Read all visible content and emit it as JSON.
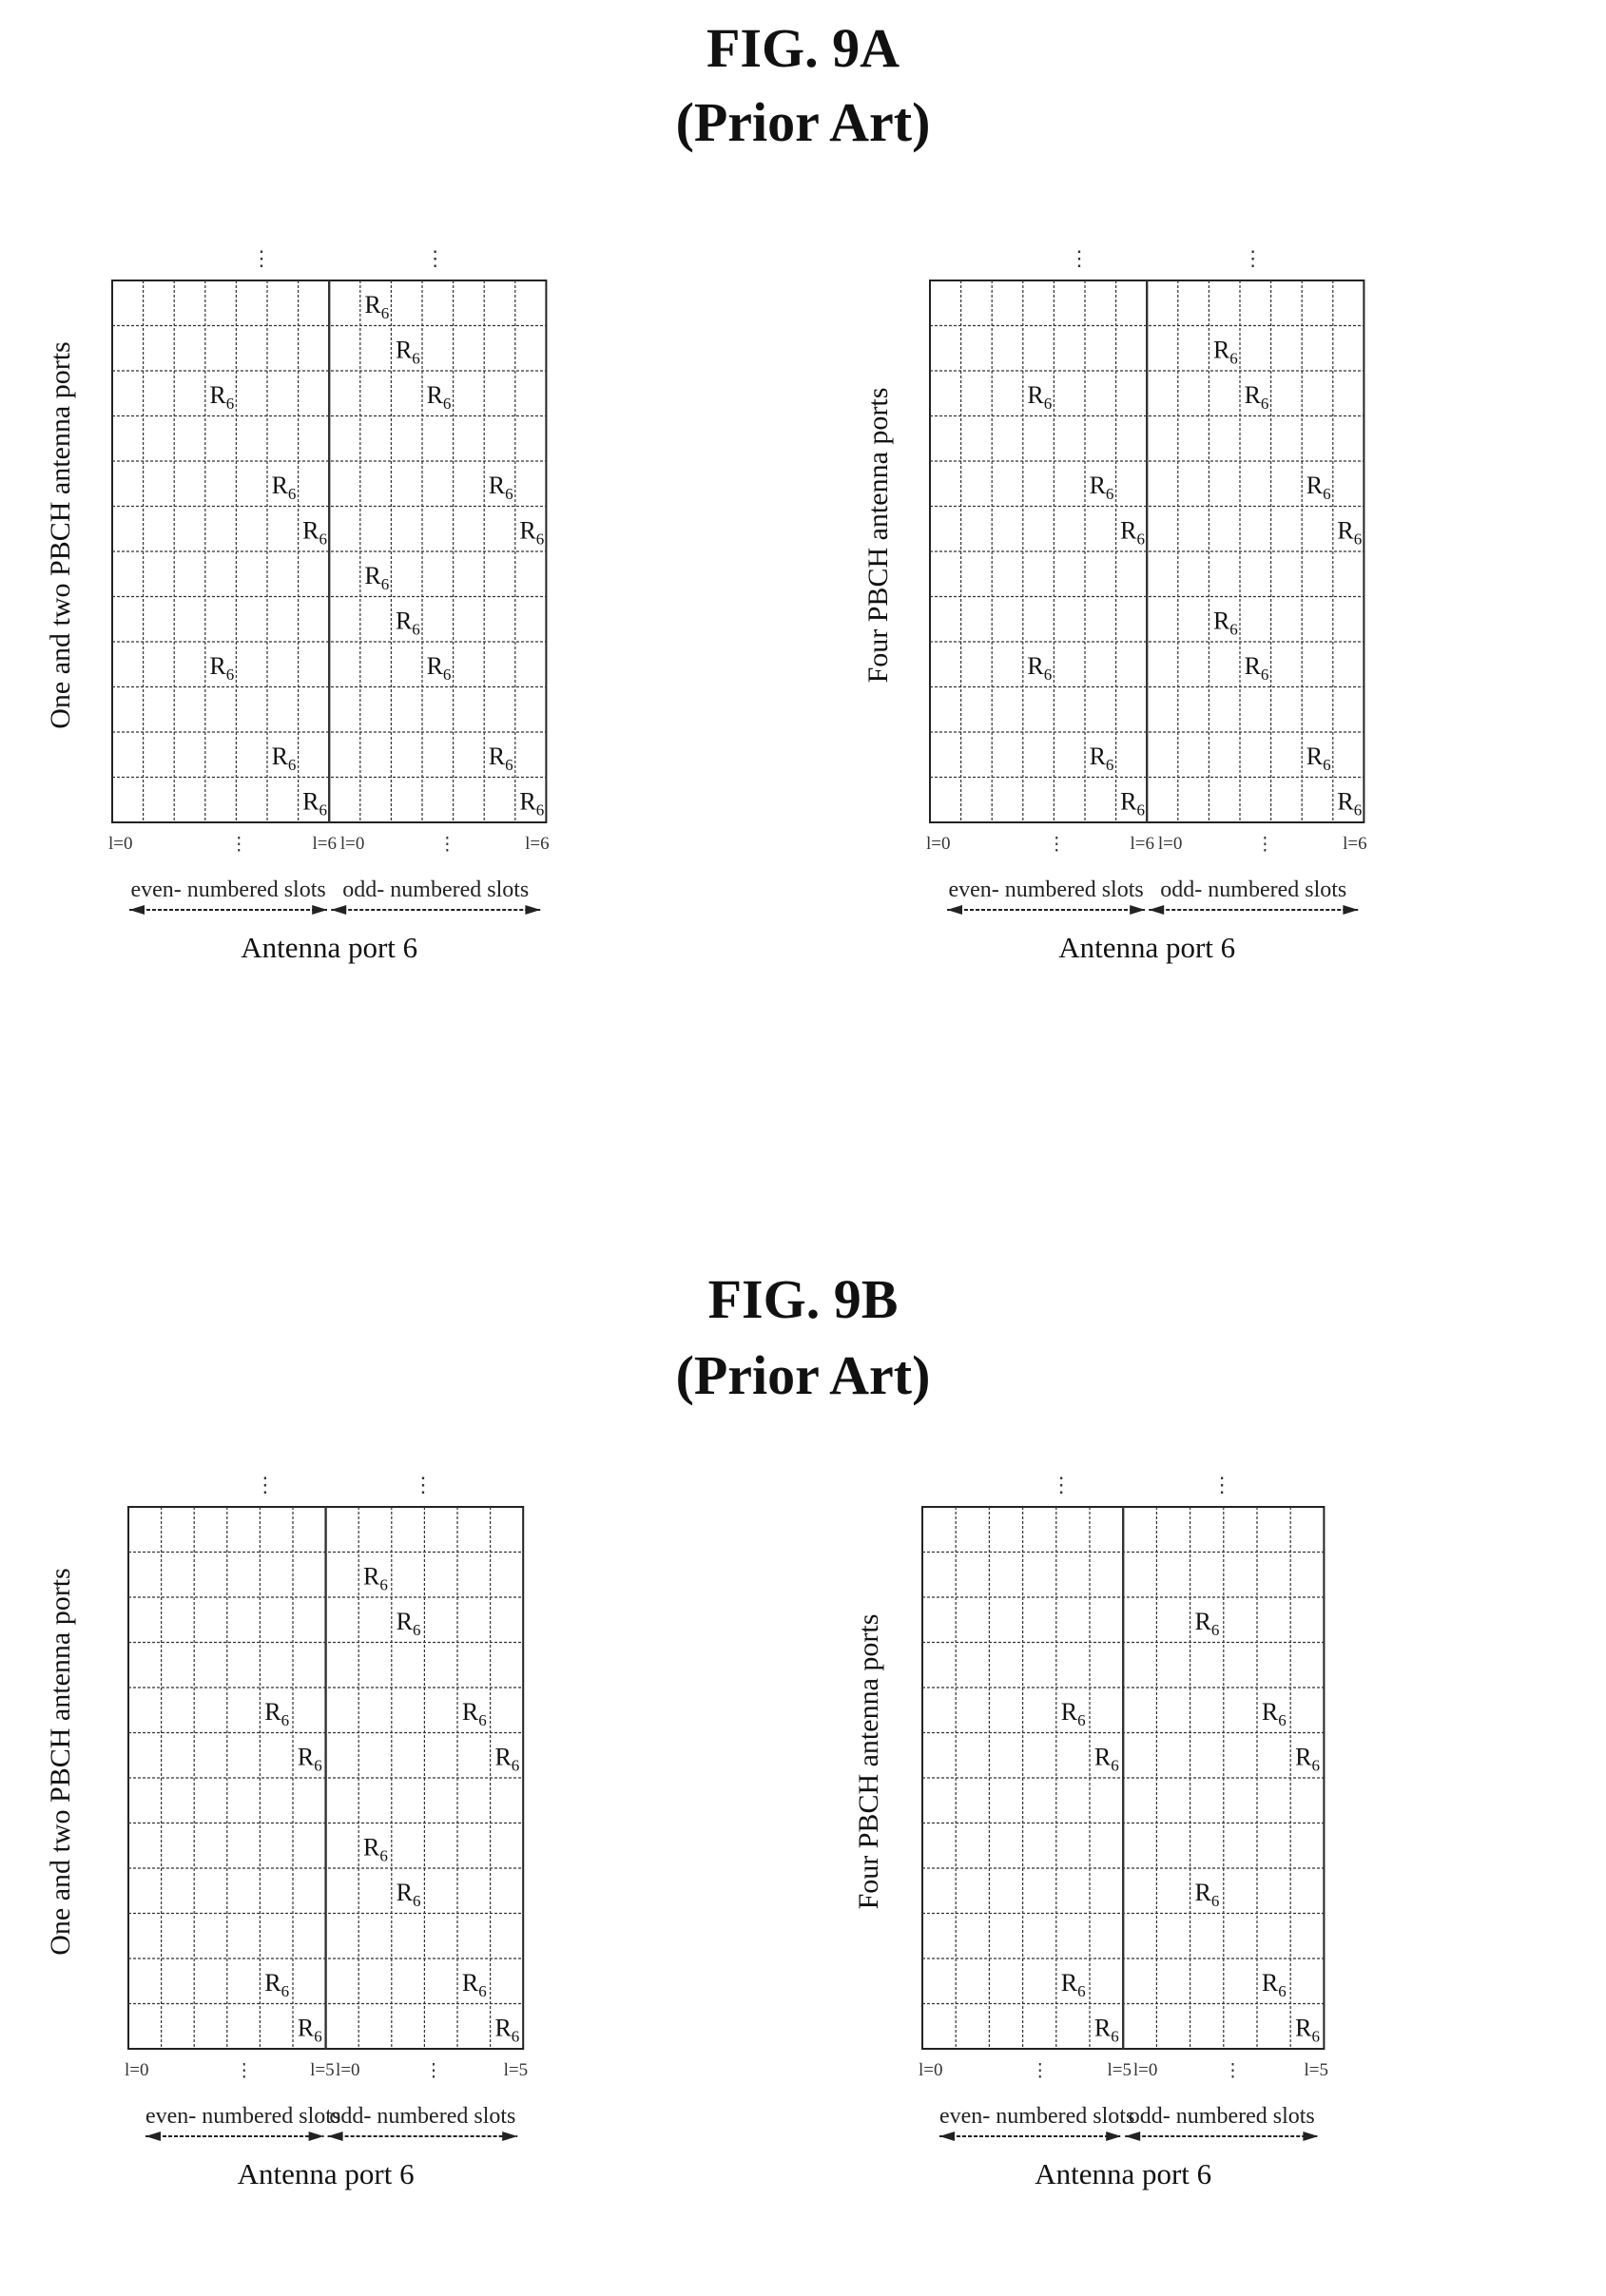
{
  "figures": [
    {
      "title": "FIG. 9A",
      "subtitle": "(Prior Art)",
      "panels": [
        {
          "side_label": "One and two PBCH antenna ports",
          "rows": 12,
          "cols": 14,
          "cells": [
            [
              0,
              8
            ],
            [
              1,
              9
            ],
            [
              2,
              3
            ],
            [
              2,
              10
            ],
            [
              4,
              5
            ],
            [
              4,
              12
            ],
            [
              5,
              6
            ],
            [
              5,
              13
            ],
            [
              6,
              8
            ],
            [
              7,
              9
            ],
            [
              8,
              3
            ],
            [
              8,
              10
            ],
            [
              10,
              5
            ],
            [
              10,
              12
            ],
            [
              11,
              6
            ],
            [
              11,
              13
            ]
          ],
          "cell_label": "R",
          "cell_sub": "6",
          "x_ticks": [
            "l=0",
            "⋮",
            "l=6",
            "l=0",
            "⋮",
            "l=6"
          ],
          "slot_even": "even- numbered slots",
          "slot_odd": "odd- numbered slots",
          "port_label": "Antenna port 6"
        },
        {
          "side_label": "Four PBCH antenna ports",
          "rows": 12,
          "cols": 14,
          "cells": [
            [
              1,
              9
            ],
            [
              2,
              3
            ],
            [
              2,
              10
            ],
            [
              4,
              5
            ],
            [
              4,
              12
            ],
            [
              5,
              6
            ],
            [
              5,
              13
            ],
            [
              7,
              9
            ],
            [
              8,
              3
            ],
            [
              8,
              10
            ],
            [
              10,
              5
            ],
            [
              10,
              12
            ],
            [
              11,
              6
            ],
            [
              11,
              13
            ]
          ],
          "cell_label": "R",
          "cell_sub": "6",
          "x_ticks": [
            "l=0",
            "⋮",
            "l=6",
            "l=0",
            "⋮",
            "l=6"
          ],
          "slot_even": "even- numbered slots",
          "slot_odd": "odd- numbered slots",
          "port_label": "Antenna port 6"
        }
      ]
    },
    {
      "title": "FIG. 9B",
      "subtitle": "(Prior Art)",
      "panels": [
        {
          "side_label": "One and two PBCH antenna ports",
          "rows": 12,
          "cols": 12,
          "cells": [
            [
              1,
              7
            ],
            [
              2,
              8
            ],
            [
              4,
              4
            ],
            [
              4,
              10
            ],
            [
              5,
              5
            ],
            [
              5,
              11
            ],
            [
              7,
              7
            ],
            [
              8,
              8
            ],
            [
              10,
              4
            ],
            [
              10,
              10
            ],
            [
              11,
              5
            ],
            [
              11,
              11
            ]
          ],
          "cell_label": "R",
          "cell_sub": "6",
          "x_ticks": [
            "l=0",
            "⋮",
            "l=5",
            "l=0",
            "⋮",
            "l=5"
          ],
          "slot_even": "even- numbered slots",
          "slot_odd": "odd- numbered slots",
          "port_label": "Antenna port 6"
        },
        {
          "side_label": "Four PBCH antenna ports",
          "rows": 12,
          "cols": 12,
          "cells": [
            [
              2,
              8
            ],
            [
              4,
              4
            ],
            [
              4,
              10
            ],
            [
              5,
              5
            ],
            [
              5,
              11
            ],
            [
              8,
              8
            ],
            [
              10,
              4
            ],
            [
              10,
              10
            ],
            [
              11,
              5
            ],
            [
              11,
              11
            ]
          ],
          "cell_label": "R",
          "cell_sub": "6",
          "x_ticks": [
            "l=0",
            "⋮",
            "l=5",
            "l=0",
            "⋮",
            "l=5"
          ],
          "slot_even": "even- numbered slots",
          "slot_odd": "odd- numbered slots",
          "port_label": "Antenna port 6"
        }
      ]
    }
  ]
}
